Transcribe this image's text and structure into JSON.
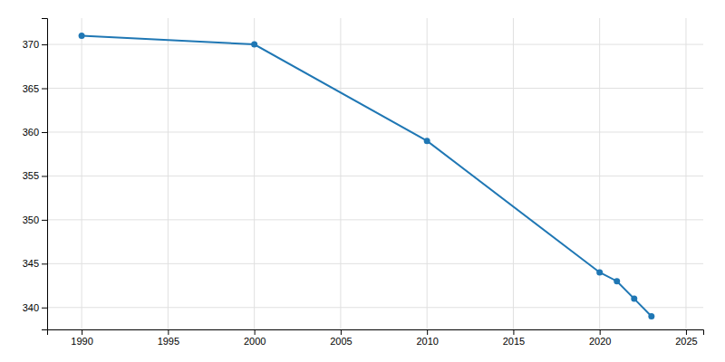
{
  "chart_data": {
    "type": "line",
    "x": [
      1990,
      2000,
      2010,
      2020,
      2021,
      2022,
      2023
    ],
    "values": [
      371,
      370,
      359,
      344,
      343,
      341,
      339
    ],
    "xlim": [
      1988,
      2026
    ],
    "ylim": [
      337.5,
      373
    ],
    "xticks": [
      1990,
      1995,
      2000,
      2005,
      2010,
      2015,
      2020,
      2025
    ],
    "yticks": [
      340,
      345,
      350,
      355,
      360,
      365,
      370
    ],
    "grid": true,
    "marker": "circle"
  }
}
